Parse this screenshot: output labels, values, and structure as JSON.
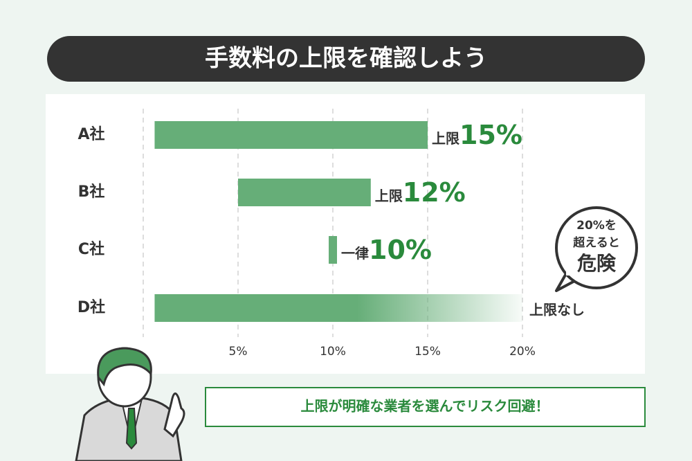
{
  "chart_data": {
    "type": "range-bar",
    "title": "手数料の上限を確認しよう",
    "categories": [
      "A社",
      "B社",
      "C社",
      "D社"
    ],
    "starts": [
      0.6,
      5,
      10,
      0.6
    ],
    "values": [
      15,
      12,
      10,
      null
    ],
    "value_labels": [
      "15%",
      "12%",
      "10%",
      null
    ],
    "limit_labels": [
      "上限",
      "上限",
      "一律",
      "上限なし"
    ],
    "color": "#66ae78",
    "label_color": "#2a8a3c",
    "xlim": [
      0,
      20
    ],
    "xticks": [
      {
        "value": 5,
        "label": "5%"
      },
      {
        "value": 10,
        "label": "10%"
      },
      {
        "value": 15,
        "label": "15%"
      },
      {
        "value": 20,
        "label": "20%"
      }
    ],
    "grid": true,
    "annotation": [
      "20%を",
      "超えると",
      "危険"
    ]
  },
  "footer": "上限が明確な業者を選んでリスク回避！"
}
